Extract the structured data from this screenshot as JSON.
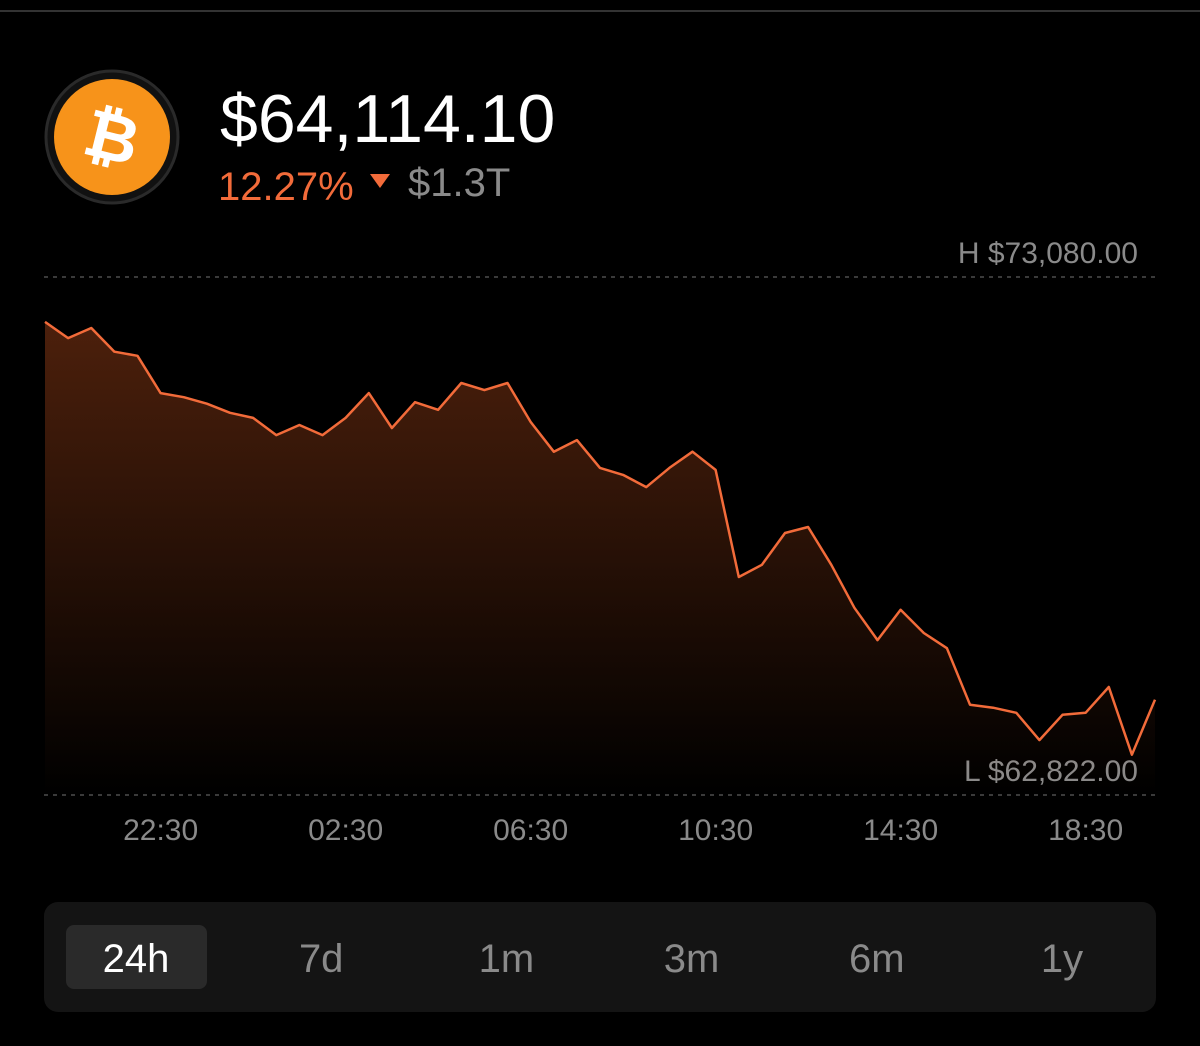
{
  "header": {
    "price": "$64,114.10",
    "change": "12.27%",
    "market_cap": "$1.3T"
  },
  "chart_data": {
    "type": "line",
    "color": "#f26b3a",
    "categories": [
      null,
      null,
      null,
      null,
      null,
      "22:30",
      null,
      null,
      null,
      null,
      null,
      null,
      null,
      "02:30",
      null,
      null,
      null,
      null,
      null,
      null,
      null,
      "06:30",
      null,
      null,
      null,
      null,
      null,
      null,
      null,
      "10:30",
      null,
      null,
      null,
      null,
      null,
      null,
      null,
      "14:30",
      null,
      null,
      null,
      null,
      null,
      null,
      null,
      "18:30",
      null,
      null,
      null
    ],
    "values": [
      72190,
      71870,
      72070,
      71600,
      71520,
      70780,
      70700,
      70570,
      70390,
      70290,
      69950,
      70150,
      69950,
      70290,
      70780,
      70090,
      70600,
      70450,
      70980,
      70840,
      70980,
      70210,
      69620,
      69850,
      69300,
      69160,
      68920,
      69300,
      69620,
      69260,
      67140,
      67380,
      68010,
      68130,
      67380,
      66530,
      65890,
      66490,
      66030,
      65730,
      64610,
      64550,
      64450,
      63910,
      64410,
      64450,
      64960,
      63620,
      64710
    ],
    "ylim": [
      62822,
      73080
    ],
    "yticks": [
      {
        "value": 73080,
        "label": "H $73,080.00"
      },
      {
        "value": 62822,
        "label": "L $62,822.00"
      }
    ],
    "grid": true
  },
  "ranges": [
    "24h",
    "7d",
    "1m",
    "3m",
    "6m",
    "1y"
  ],
  "selected": 0
}
